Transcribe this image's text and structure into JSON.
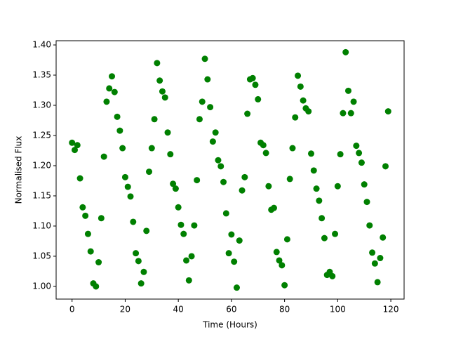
{
  "chart_data": {
    "type": "scatter",
    "xlabel": "Time (Hours)",
    "ylabel": "Normalised Flux",
    "color": "#008000",
    "x": [
      0,
      1,
      2,
      3,
      4,
      5,
      6,
      7,
      8,
      9,
      10,
      11,
      12,
      13,
      14,
      15,
      16,
      17,
      18,
      19,
      20,
      21,
      22,
      23,
      24,
      25,
      26,
      27,
      28,
      29,
      30,
      31,
      32,
      33,
      34,
      35,
      36,
      37,
      38,
      39,
      40,
      41,
      42,
      43,
      44,
      45,
      46,
      47,
      48,
      49,
      50,
      51,
      52,
      53,
      54,
      55,
      56,
      57,
      58,
      59,
      60,
      61,
      62,
      63,
      64,
      65,
      66,
      67,
      68,
      69,
      70,
      71,
      72,
      73,
      74,
      75,
      76,
      77,
      78,
      79,
      80,
      81,
      82,
      83,
      84,
      85,
      86,
      87,
      88,
      89,
      90,
      91,
      92,
      93,
      94,
      95,
      96,
      97,
      98,
      99,
      100,
      101,
      102,
      103,
      104,
      105,
      106,
      107,
      108,
      109,
      110,
      111,
      112,
      113,
      114,
      115,
      116,
      117,
      118,
      119
    ],
    "values": [
      1.238,
      1.226,
      1.234,
      1.179,
      1.131,
      1.117,
      1.087,
      1.058,
      1.005,
      1.0,
      1.04,
      1.113,
      1.215,
      1.306,
      1.328,
      1.348,
      1.322,
      1.281,
      1.258,
      1.229,
      1.181,
      1.165,
      1.149,
      1.107,
      1.055,
      1.042,
      1.005,
      1.024,
      1.092,
      1.19,
      1.229,
      1.277,
      1.37,
      1.341,
      1.323,
      1.313,
      1.255,
      1.219,
      1.17,
      1.162,
      1.131,
      1.102,
      1.087,
      1.043,
      1.01,
      1.05,
      1.101,
      1.176,
      1.277,
      1.306,
      1.377,
      1.343,
      1.297,
      1.24,
      1.255,
      1.209,
      1.199,
      1.173,
      1.121,
      1.055,
      1.086,
      1.041,
      0.998,
      1.076,
      1.159,
      1.181,
      1.286,
      1.343,
      1.345,
      1.334,
      1.31,
      1.238,
      1.234,
      1.221,
      1.166,
      1.127,
      1.13,
      1.057,
      1.043,
      1.035,
      1.002,
      1.078,
      1.178,
      1.229,
      1.28,
      1.349,
      1.331,
      1.308,
      1.295,
      1.29,
      1.22,
      1.192,
      1.162,
      1.142,
      1.113,
      1.08,
      1.019,
      1.024,
      1.017,
      1.087,
      1.166,
      1.219,
      1.287,
      1.388,
      1.324,
      1.287,
      1.306,
      1.233,
      1.221,
      1.205,
      1.169,
      1.14,
      1.101,
      1.056,
      1.038,
      1.007,
      1.047,
      1.081,
      1.199,
      1.29
    ],
    "xlim": [
      -6,
      125
    ],
    "xticks": [
      0,
      20,
      40,
      60,
      80,
      100,
      120
    ],
    "ylim": [
      0.979,
      1.407
    ],
    "yticks": [
      {
        "value": 1.0,
        "label": "1.00"
      },
      1.05,
      {
        "value": 1.1,
        "label": "1.10"
      },
      1.15,
      {
        "value": 1.2,
        "label": "1.20"
      },
      1.25,
      {
        "value": 1.3,
        "label": "1.30"
      },
      1.35,
      {
        "value": 1.4,
        "label": "1.40"
      }
    ]
  }
}
